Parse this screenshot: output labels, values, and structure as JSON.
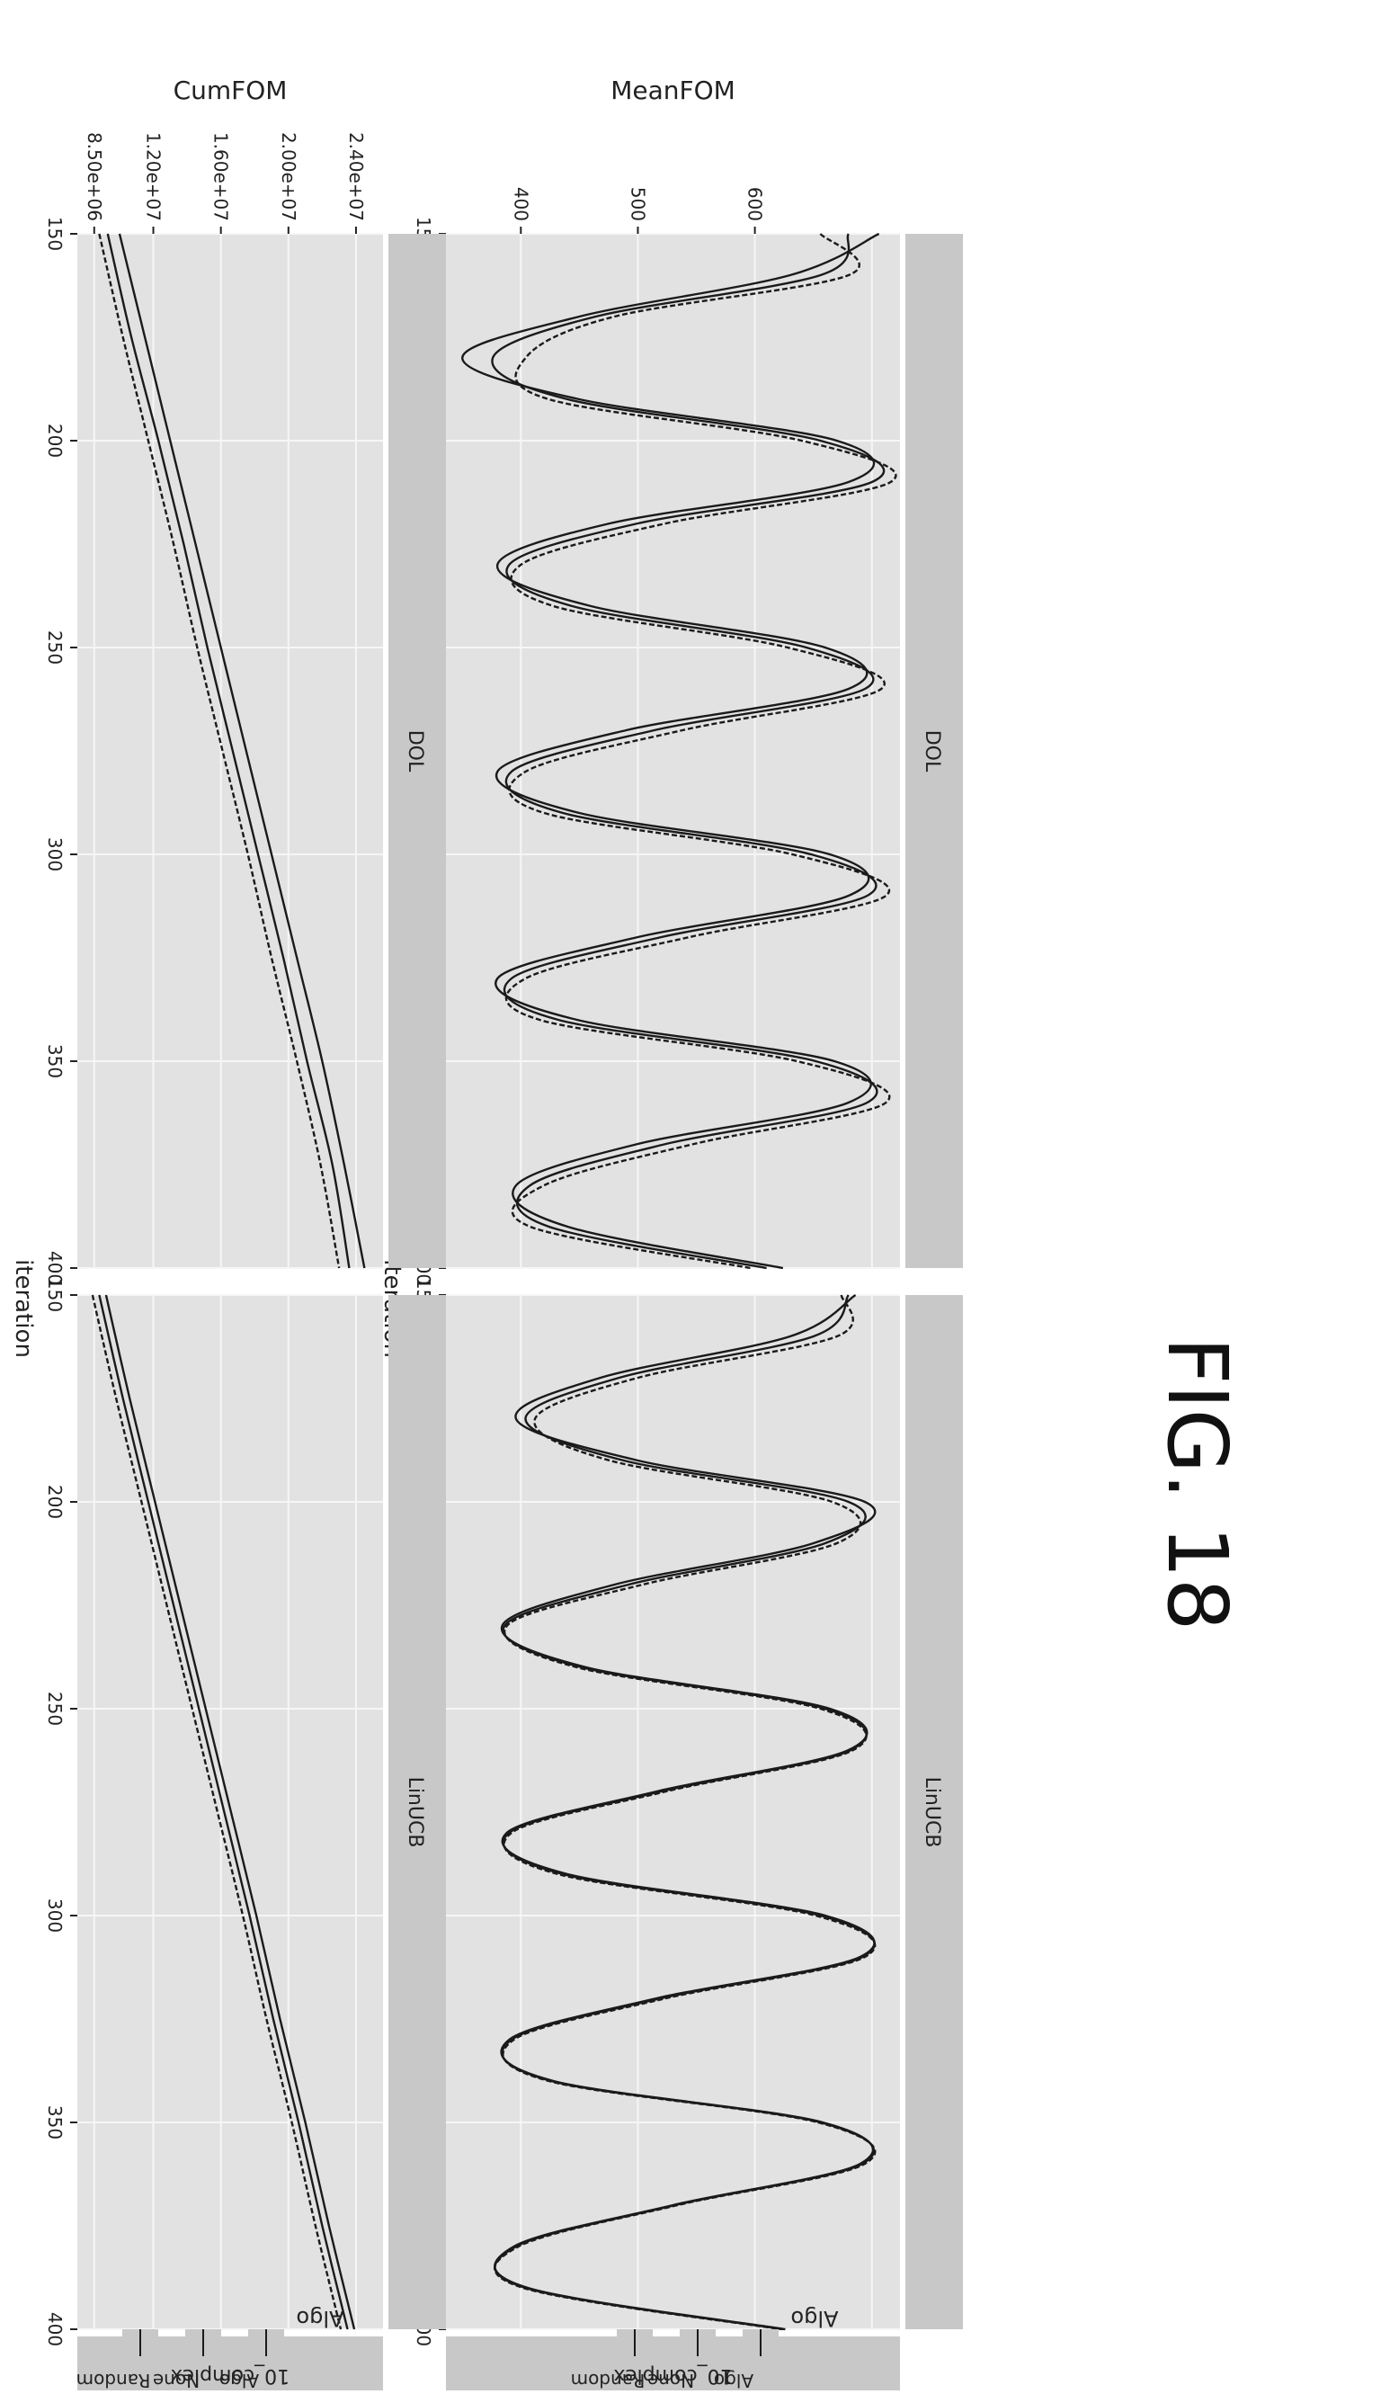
{
  "figure_label": "FIG. 18",
  "colors": {
    "panel_bg": "#e2e2e2",
    "strip_bg": "#c8c8c8",
    "grid": "#f6f6f6",
    "line": "#1a1a1a",
    "text": "#222222"
  },
  "chart_data": [
    {
      "type": "line",
      "panel": "DOL",
      "facet_col": "",
      "ylabel": "MeanFOM",
      "xlabel": "",
      "x": [
        150,
        160,
        170,
        180,
        190,
        200,
        210,
        220,
        230,
        240,
        250,
        260,
        270,
        280,
        290,
        300,
        310,
        320,
        330,
        340,
        350,
        360,
        370,
        380,
        390,
        400
      ],
      "series": [
        {
          "values": [
            603,
            565,
            475,
            425,
            475,
            585,
            590,
            488,
            440,
            480,
            580,
            590,
            495,
            440,
            475,
            582,
            590,
            500,
            440,
            474,
            584,
            590,
            500,
            448,
            470,
            562
          ]
        },
        {
          "values": [
            590,
            578,
            482,
            438,
            470,
            578,
            600,
            500,
            445,
            472,
            572,
            597,
            507,
            446,
            468,
            574,
            598,
            510,
            446,
            466,
            576,
            598,
            512,
            454,
            462,
            555
          ]
        },
        {
          "values": [
            578,
            590,
            490,
            452,
            462,
            570,
            608,
            512,
            450,
            464,
            564,
            604,
            519,
            452,
            460,
            566,
            606,
            522,
            452,
            458,
            568,
            606,
            524,
            460,
            454,
            548
          ]
        }
      ],
      "xlim": [
        150,
        400
      ],
      "ylim": [
        418,
        612
      ],
      "yticks": [
        450,
        500,
        550,
        600
      ],
      "ytick_labels": [
        "400",
        "500",
        "600"
      ]
    },
    {
      "type": "line",
      "panel": "LinUCB",
      "facet_col": "10_complex",
      "ylabel": "",
      "xlabel": "iteration",
      "x": [
        150,
        160,
        170,
        180,
        190,
        200,
        210,
        220,
        230,
        240,
        250,
        260,
        270,
        280,
        290,
        300,
        310,
        320,
        330,
        340,
        350,
        360,
        370,
        380,
        390,
        400
      ],
      "series": [
        {
          "values": [
            593,
            565,
            484,
            448,
            500,
            597,
            575,
            490,
            442,
            478,
            582,
            590,
            508,
            444,
            470,
            580,
            595,
            508,
            445,
            464,
            579,
            595,
            515,
            447,
            453,
            563
          ]
        },
        {
          "values": [
            590,
            575,
            492,
            452,
            494,
            590,
            580,
            496,
            443,
            476,
            580,
            591,
            510,
            445,
            468,
            578,
            596,
            510,
            446,
            463,
            578,
            596,
            516,
            448,
            452,
            562
          ]
        },
        {
          "values": [
            587,
            585,
            500,
            456,
            488,
            583,
            585,
            502,
            444,
            474,
            578,
            592,
            512,
            446,
            466,
            576,
            597,
            512,
            447,
            462,
            577,
            597,
            517,
            449,
            451,
            561
          ]
        }
      ],
      "xlim": [
        150,
        400
      ],
      "ylim": [
        418,
        612
      ],
      "xticks": [
        150,
        200,
        250,
        300,
        350,
        400
      ],
      "xtick_labels": [
        "150",
        "200",
        "250",
        "300",
        "350",
        "400"
      ]
    },
    {
      "type": "line",
      "panel": "DOL",
      "facet_col": "",
      "ylabel": "CumFOM",
      "xlabel": "",
      "x": [
        150,
        175,
        200,
        225,
        250,
        275,
        300,
        325,
        350,
        375,
        400
      ],
      "series": [
        {
          "values": [
            10000000,
            11500000,
            13000000,
            14500000,
            16000000,
            17500000,
            19000000,
            20500000,
            22000000,
            23300000,
            24500000
          ]
        },
        {
          "values": [
            9300000,
            10700000,
            12300000,
            13800000,
            15200000,
            16700000,
            18200000,
            19700000,
            21100000,
            22600000,
            23600000
          ]
        },
        {
          "values": [
            8800000,
            10200000,
            11700000,
            13200000,
            14600000,
            16100000,
            17600000,
            19000000,
            20500000,
            21900000,
            23000000
          ]
        }
      ],
      "xlim": [
        150,
        400
      ],
      "ylim": [
        7500000,
        25600000
      ],
      "yticks": [
        8500000,
        12000000,
        16000000,
        20000000,
        24000000
      ],
      "ytick_labels": [
        "8.50e+06",
        "1.20e+07",
        "1.60e+07",
        "2.00e+07",
        "2.40e+07"
      ]
    },
    {
      "type": "line",
      "panel": "LinUCB",
      "facet_col": "10_complex",
      "ylabel": "",
      "xlabel": "iteration",
      "x": [
        150,
        175,
        200,
        225,
        250,
        275,
        300,
        325,
        350,
        375,
        400
      ],
      "series": [
        {
          "values": [
            9200000,
            10600000,
            12100000,
            13600000,
            15100000,
            16600000,
            18100000,
            19500000,
            21000000,
            22400000,
            23900000
          ]
        },
        {
          "values": [
            8800000,
            10200000,
            11700000,
            13200000,
            14700000,
            16200000,
            17700000,
            19100000,
            20600000,
            22000000,
            23500000
          ]
        },
        {
          "values": [
            8400000,
            9800000,
            11300000,
            12800000,
            14300000,
            15800000,
            17300000,
            18700000,
            20200000,
            21600000,
            23100000
          ]
        }
      ],
      "xlim": [
        150,
        400
      ],
      "ylim": [
        7500000,
        25600000
      ],
      "xticks": [
        150,
        200,
        250,
        300,
        350,
        400
      ],
      "xtick_labels": [
        "150",
        "200",
        "250",
        "300",
        "350",
        "400"
      ]
    }
  ],
  "legends": [
    {
      "title": "Algo",
      "items": [
        "Algo",
        "None",
        "Random"
      ]
    },
    {
      "title": "Algo",
      "items": [
        "Algo",
        "None",
        "Random"
      ]
    }
  ]
}
